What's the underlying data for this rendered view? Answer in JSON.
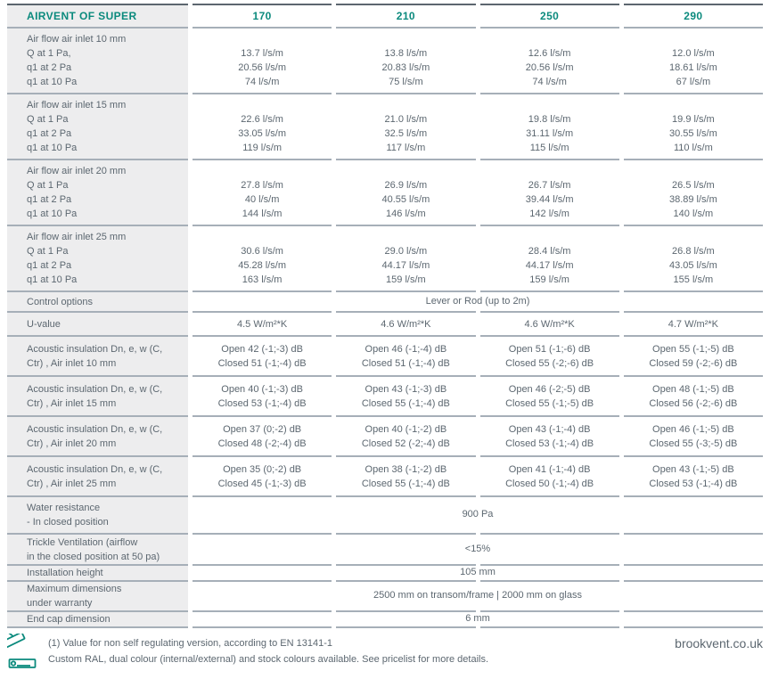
{
  "theme": {
    "teal": "#0b8a7d",
    "text": "#5c6770",
    "left_column_bg": "#ededee",
    "separator_line": "#a6afb8",
    "top_border": "#5c666f"
  },
  "header": {
    "title": "AIRVENT OF SUPER",
    "columns": [
      "170",
      "210",
      "250",
      "290"
    ]
  },
  "rows": [
    {
      "name": "airflow-10mm",
      "label_lines": [
        "Air flow air inlet 10 mm",
        "Q at 1 Pa,",
        "q1 at 2 Pa",
        "q1 at 10 Pa"
      ],
      "cols": [
        [
          "",
          "13.7 l/s/m",
          "20.56 l/s/m",
          "74 l/s/m"
        ],
        [
          "",
          "13.8 l/s/m",
          "20.83 l/s/m",
          "75 l/s/m"
        ],
        [
          "",
          "12.6 l/s/m",
          "20.56 l/s/m",
          "74 l/s/m"
        ],
        [
          "",
          "12.0 l/s/m",
          "18.61 l/s/m",
          "67 l/s/m"
        ]
      ]
    },
    {
      "name": "airflow-15mm",
      "label_lines": [
        "Air flow air inlet 15 mm",
        "Q at 1 Pa",
        "q1 at 2 Pa",
        "q1 at 10 Pa"
      ],
      "cols": [
        [
          "",
          "22.6 l/s/m",
          "33.05 l/s/m",
          "119 l/s/m"
        ],
        [
          "",
          "21.0 l/s/m",
          "32.5 l/s/m",
          "117 l/s/m"
        ],
        [
          "",
          "19.8 l/s/m",
          "31.11 l/s/m",
          "115 l/s/m"
        ],
        [
          "",
          "19.9 l/s/m",
          "30.55 l/s/m",
          "110 l/s/m"
        ]
      ]
    },
    {
      "name": "airflow-20mm",
      "label_lines": [
        "Air flow air inlet 20 mm",
        "Q at 1 Pa",
        "q1 at 2 Pa",
        "q1 at 10 Pa"
      ],
      "cols": [
        [
          "",
          "27.8 l/s/m",
          "40 l/s/m",
          "144 l/s/m"
        ],
        [
          "",
          "26.9 l/s/m",
          "40.55 l/s/m",
          "146 l/s/m"
        ],
        [
          "",
          "26.7 l/s/m",
          "39.44 l/s/m",
          "142 l/s/m"
        ],
        [
          "",
          "26.5 l/s/m",
          "38.89 l/s/m",
          "140 l/s/m"
        ]
      ]
    },
    {
      "name": "airflow-25mm",
      "label_lines": [
        "Air flow air inlet 25 mm",
        "Q at 1 Pa",
        "q1 at 2 Pa",
        "q1 at 10 Pa"
      ],
      "cols": [
        [
          "",
          "30.6 l/s/m",
          "45.28 l/s/m",
          "163 l/s/m"
        ],
        [
          "",
          "29.0 l/s/m",
          "44.17 l/s/m",
          "159 l/s/m"
        ],
        [
          "",
          "28.4 l/s/m",
          "44.17 l/s/m",
          "159 l/s/m"
        ],
        [
          "",
          "26.8 l/s/m",
          "43.05 l/s/m",
          "155 l/s/m"
        ]
      ]
    },
    {
      "name": "control-options",
      "label_lines": [
        "Control options"
      ],
      "span": "Lever or Rod (up to 2m)"
    },
    {
      "name": "u-value",
      "label_lines": [
        "U-value"
      ],
      "cols": [
        [
          "4.5 W/m²*K"
        ],
        [
          "4.6 W/m²*K"
        ],
        [
          "4.6 W/m²*K"
        ],
        [
          "4.7 W/m²*K"
        ]
      ]
    },
    {
      "name": "acoustic-10mm",
      "label_lines": [
        "Acoustic insulation Dn, e, w (C,",
        "Ctr) , Air inlet 10 mm"
      ],
      "cols": [
        [
          "Open 42 (-1;-3) dB",
          "Closed 51 (-1;-4) dB"
        ],
        [
          "Open 46 (-1;-4) dB",
          "Closed 51 (-1;-4) dB"
        ],
        [
          "Open 51 (-1;-6) dB",
          "Closed 55 (-2;-6) dB"
        ],
        [
          "Open 55 (-1;-5) dB",
          "Closed 59 (-2;-6) dB"
        ]
      ]
    },
    {
      "name": "acoustic-15mm",
      "label_lines": [
        "Acoustic insulation Dn, e, w (C,",
        "Ctr) , Air inlet 15 mm"
      ],
      "cols": [
        [
          "Open 40 (-1;-3) dB",
          "Closed 53 (-1;-4) dB"
        ],
        [
          "Open 43 (-1;-3) dB",
          "Closed 55 (-1;-4) dB"
        ],
        [
          "Open 46 (-2;-5) dB",
          "Closed 55 (-1;-5) dB"
        ],
        [
          "Open 48 (-1;-5) dB",
          "Closed 56 (-2;-6) dB"
        ]
      ]
    },
    {
      "name": "acoustic-20mm",
      "label_lines": [
        "Acoustic insulation Dn, e, w (C,",
        "Ctr) , Air inlet 20 mm"
      ],
      "cols": [
        [
          "Open 37 (0;-2) dB",
          "Closed 48 (-2;-4) dB"
        ],
        [
          "Open 40 (-1;-2) dB",
          "Closed 52 (-2;-4) dB"
        ],
        [
          "Open 43 (-1;-4) dB",
          "Closed 53 (-1;-4) dB"
        ],
        [
          "Open 46 (-1;-5) dB",
          "Closed 55 (-3;-5) dB"
        ]
      ]
    },
    {
      "name": "acoustic-25mm",
      "label_lines": [
        "Acoustic insulation Dn, e, w (C,",
        "Ctr) , Air inlet 25 mm"
      ],
      "cols": [
        [
          "Open 35 (0;-2) dB",
          "Closed 45 (-1;-3) dB"
        ],
        [
          "Open 38 (-1;-2) dB",
          "Closed 55 (-1;-4) dB"
        ],
        [
          "Open 41 (-1;-4) dB",
          "Closed 50 (-1;-4) dB"
        ],
        [
          "Open 43 (-1;-5) dB",
          "Closed 53 (-1;-4) dB"
        ]
      ]
    },
    {
      "name": "water-resistance",
      "label_lines": [
        "Water resistance",
        "- In closed position"
      ],
      "span": "900 Pa"
    },
    {
      "name": "trickle-ventilation",
      "label_lines": [
        "Trickle Ventilation (airflow",
        "in the closed position at 50 pa)"
      ],
      "span": "<15%"
    },
    {
      "name": "installation-height",
      "label_lines": [
        "Installation height"
      ],
      "span": "105 mm"
    },
    {
      "name": "maximum-dimensions",
      "label_lines": [
        "Maximum dimensions",
        "under warranty"
      ],
      "span": "2500 mm on transom/frame  | 2000 mm on glass"
    },
    {
      "name": "end-cap-dimension",
      "label_lines": [
        "End cap dimension"
      ],
      "span": "6 mm"
    }
  ],
  "footer": {
    "note_line1": "(1) Value for non self regulating version, according to EN 13141-1",
    "note_line2": "Custom RAL, dual colour (internal/external) and stock colours available. See pricelist for more details.",
    "website": "brookvent.co.uk",
    "icon": "ral-colour-fan-icon"
  }
}
